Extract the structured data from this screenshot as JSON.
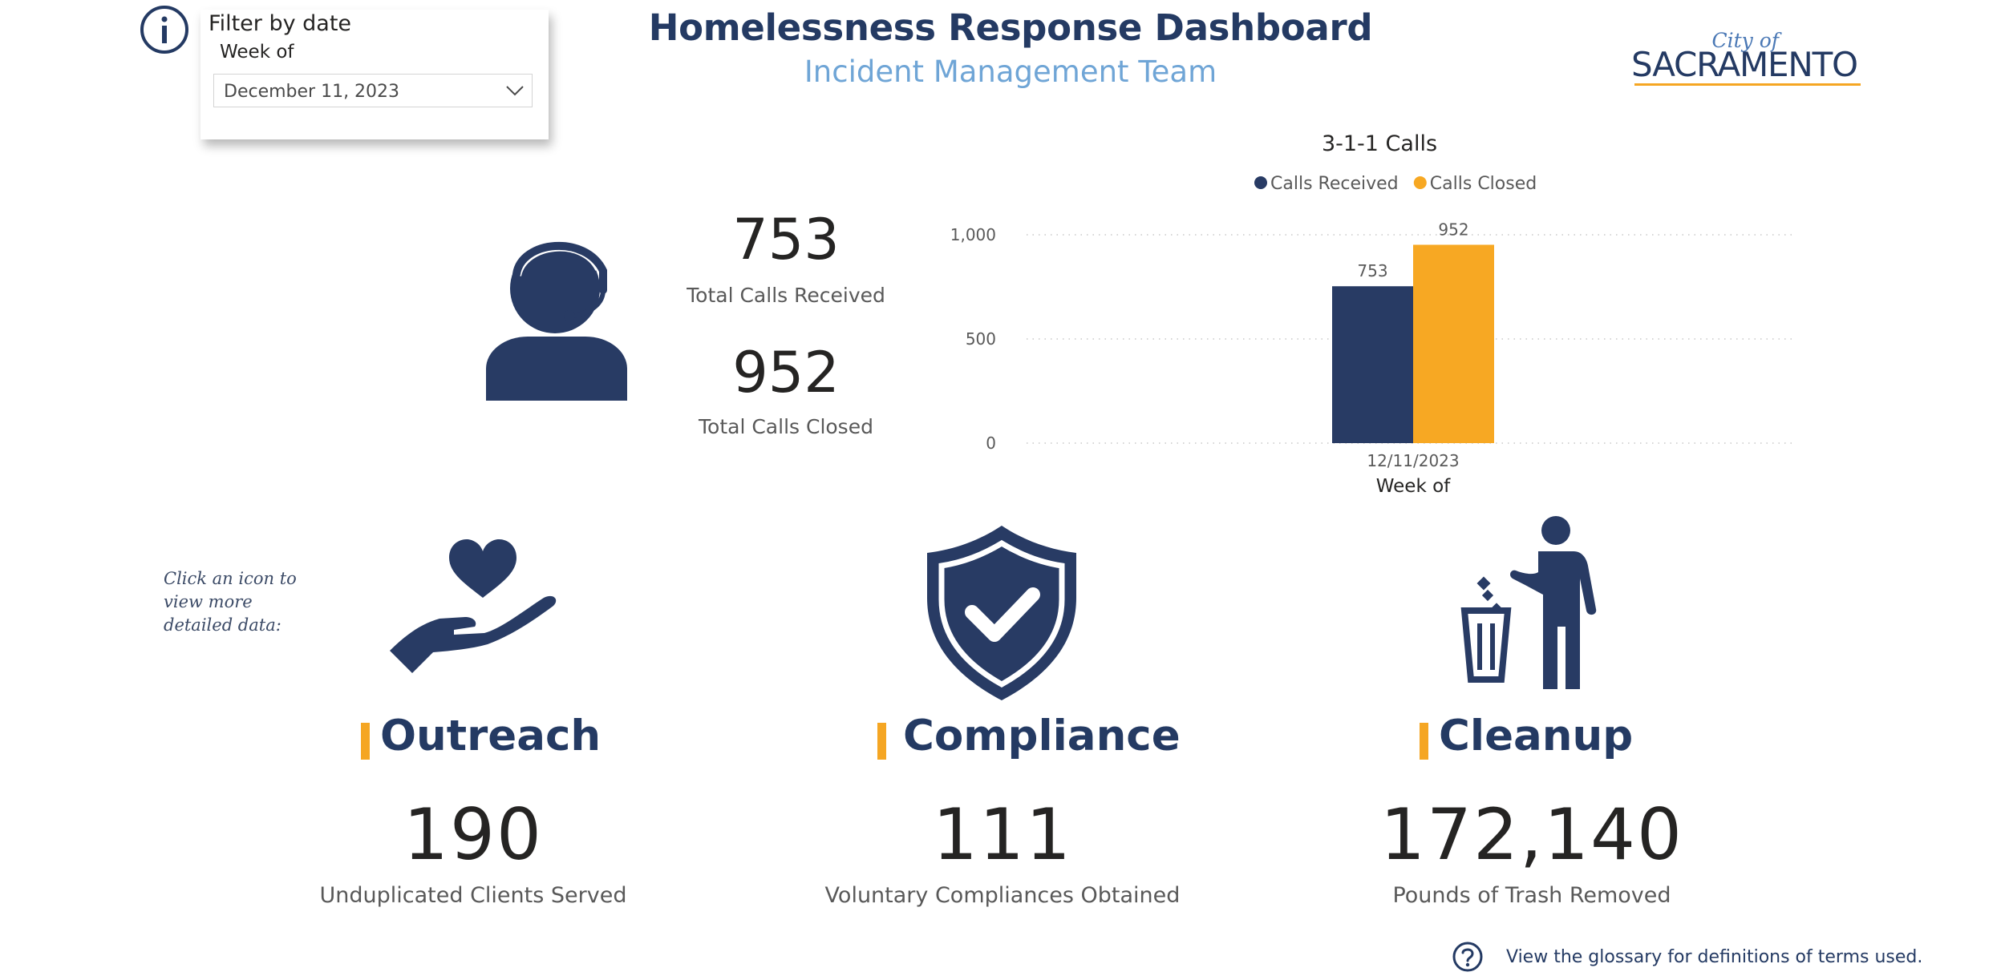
{
  "header": {
    "title": "Homelessness Response Dashboard",
    "subtitle": "Incident Management Team"
  },
  "filter": {
    "title": "Filter by date",
    "label": "Week of",
    "selected": "December 11, 2023"
  },
  "logo": {
    "city": "City of",
    "name": "SACRAMENTO"
  },
  "calls": {
    "received_value": "753",
    "received_label": "Total Calls Received",
    "closed_value": "952",
    "closed_label": "Total Calls Closed"
  },
  "chart_data": {
    "type": "bar",
    "title": "3-1-1 Calls",
    "categories": [
      "12/11/2023"
    ],
    "xlabel": "Week of",
    "ylabel": "",
    "ylim": [
      0,
      1000
    ],
    "yticks": [
      0,
      500,
      1000
    ],
    "ytick_labels": [
      "0",
      "500",
      "1,000"
    ],
    "grid": true,
    "legend_position": "top-center",
    "series": [
      {
        "name": "Calls Received",
        "values": [
          753
        ],
        "color": "#283b64"
      },
      {
        "name": "Calls Closed",
        "values": [
          952
        ],
        "color": "#f7a823"
      }
    ]
  },
  "hint": "Click an icon to view more detailed data:",
  "categories": [
    {
      "title": "Outreach",
      "value": "190",
      "label": "Unduplicated Clients Served",
      "icon": "heart-hand-icon"
    },
    {
      "title": "Compliance",
      "value": "111",
      "label": "Voluntary Compliances Obtained",
      "icon": "shield-check-icon"
    },
    {
      "title": "Cleanup",
      "value": "172,140",
      "label": "Pounds of Trash Removed",
      "icon": "person-trash-icon"
    }
  ],
  "glossary": {
    "text": "View the glossary for definitions of terms used."
  },
  "colors": {
    "navy": "#243a63",
    "accent": "#f5a623",
    "subtitle": "#6fa5d6"
  }
}
